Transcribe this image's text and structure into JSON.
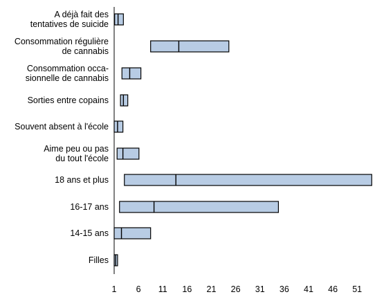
{
  "chart_data": {
    "type": "bar",
    "orientation": "horizontal",
    "description_kind": "range",
    "colors": {
      "bar_fill": "#b8cce4",
      "bar_stroke": "#000000",
      "axis": "#000000"
    },
    "categories": [
      [
        "A déjà fait des",
        "tentatives de suicide"
      ],
      [
        "Consommation régulière",
        "de cannabis"
      ],
      [
        "Consommation occa-",
        "sionnelle de cannabis"
      ],
      [
        "Sorties entre copains"
      ],
      [
        "Souvent absent à l'école"
      ],
      [
        "Aime peu ou pas",
        "du tout l'école"
      ],
      [
        "18 ans et plus"
      ],
      [
        "16-17 ans"
      ],
      [
        "14-15 ans"
      ],
      [
        "Filles"
      ]
    ],
    "series": [
      {
        "low": [
          1.1,
          8.5,
          2.6,
          2.3,
          1.0,
          1.6,
          3.1,
          2.1,
          1.0,
          1.0
        ],
        "mid": [
          1.8,
          14.3,
          4.2,
          2.9,
          1.7,
          2.8,
          13.7,
          9.2,
          2.5,
          1.3
        ],
        "high": [
          2.9,
          24.6,
          6.5,
          3.8,
          2.8,
          6.1,
          54.0,
          34.8,
          8.5,
          1.7
        ]
      }
    ],
    "xlim": [
      1,
      54
    ],
    "x_ticks": [
      "1",
      "6",
      "11",
      "16",
      "21",
      "26",
      "31",
      "36",
      "41",
      "46",
      "51"
    ],
    "legend": "none",
    "grid": false
  }
}
